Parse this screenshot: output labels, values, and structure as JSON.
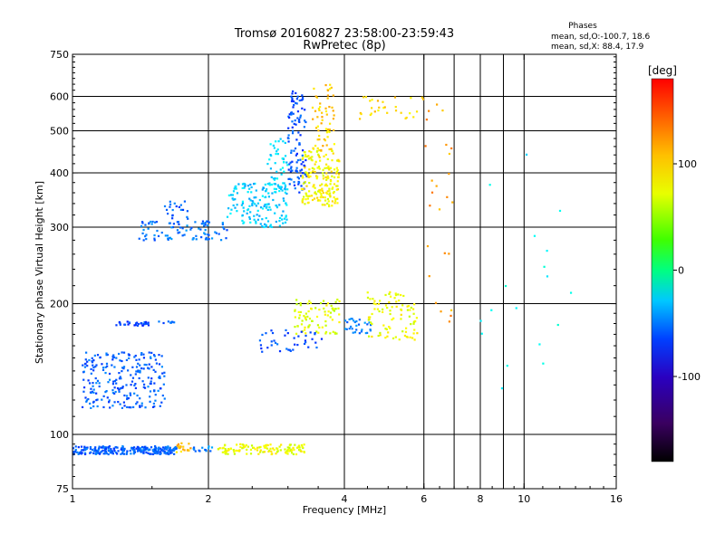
{
  "chart_data": {
    "type": "scatter",
    "title": "Tromsø 20160827 23:58:00-23:59:43",
    "subtitle": "RwPretec (8p)",
    "xlabel": "Frequency [MHz]",
    "ylabel": "Stationary phase Virtual Height [km]",
    "x_scale": "log2",
    "y_scale": "log",
    "xlim": [
      1,
      16
    ],
    "ylim": [
      75,
      750
    ],
    "x_ticks": [
      1,
      2,
      4,
      6,
      8,
      10,
      16
    ],
    "y_ticks": [
      75,
      100,
      200,
      300,
      400,
      500,
      600,
      750
    ],
    "x_grid": [
      2,
      4,
      6,
      7,
      8,
      9,
      10
    ],
    "y_grid": [
      100,
      200,
      300,
      400,
      500,
      600
    ],
    "stats": {
      "title": "Phases",
      "line_o": "mean, sd,O:-100.7, 18.6",
      "line_x": "mean, sd,X:  88.4, 17.9"
    },
    "colorbar": {
      "label": "[deg]",
      "range": [
        -180,
        180
      ],
      "ticks": [
        100,
        0,
        -100
      ],
      "colormap": "rainbow"
    },
    "series": [
      {
        "x_range": [
          1.0,
          1.7
        ],
        "y_range": [
          90,
          94
        ],
        "phase": -110,
        "n": 260
      },
      {
        "x_range": [
          1.7,
          1.85
        ],
        "y_range": [
          91,
          96
        ],
        "phase": 120,
        "n": 18
      },
      {
        "x_range": [
          1.85,
          2.05
        ],
        "y_range": [
          91,
          94
        ],
        "phase": -100,
        "n": 14
      },
      {
        "x_range": [
          2.1,
          3.3
        ],
        "y_range": [
          90,
          95
        ],
        "phase": 95,
        "n": 120
      },
      {
        "x_range": [
          1.05,
          1.6
        ],
        "y_range": [
          115,
          155
        ],
        "phase": -110,
        "n": 240
      },
      {
        "x_range": [
          1.25,
          1.5
        ],
        "y_range": [
          178,
          182
        ],
        "phase": -120,
        "n": 30
      },
      {
        "x_range": [
          1.55,
          1.7
        ],
        "y_range": [
          180,
          182
        ],
        "phase": -110,
        "n": 8
      },
      {
        "x_range": [
          1.4,
          2.2
        ],
        "y_range": [
          280,
          310
        ],
        "phase": -105,
        "n": 90
      },
      {
        "x_range": [
          1.6,
          1.8
        ],
        "y_range": [
          310,
          345
        ],
        "phase": -110,
        "n": 20
      },
      {
        "x_range": [
          2.2,
          3.0
        ],
        "y_range": [
          300,
          380
        ],
        "phase": -75,
        "n": 160
      },
      {
        "x_range": [
          2.7,
          3.0
        ],
        "y_range": [
          370,
          480
        ],
        "phase": -70,
        "n": 40
      },
      {
        "x_range": [
          3.0,
          3.3
        ],
        "y_range": [
          360,
          560
        ],
        "phase": -115,
        "n": 90
      },
      {
        "x_range": [
          3.05,
          3.25
        ],
        "y_range": [
          560,
          620
        ],
        "phase": -120,
        "n": 20
      },
      {
        "x_range": [
          3.2,
          3.9
        ],
        "y_range": [
          335,
          450
        ],
        "phase": 100,
        "n": 180
      },
      {
        "x_range": [
          3.4,
          3.8
        ],
        "y_range": [
          450,
          640
        ],
        "phase": 115,
        "n": 60
      },
      {
        "x_range": [
          3.1,
          3.9
        ],
        "y_range": [
          170,
          205
        ],
        "phase": 90,
        "n": 80
      },
      {
        "x_range": [
          2.6,
          3.6
        ],
        "y_range": [
          155,
          175
        ],
        "phase": -115,
        "n": 40
      },
      {
        "x_range": [
          4.0,
          4.6
        ],
        "y_range": [
          170,
          185
        ],
        "phase": -100,
        "n": 30
      },
      {
        "x_range": [
          4.5,
          5.8
        ],
        "y_range": [
          165,
          215
        ],
        "phase": 95,
        "n": 90
      },
      {
        "x_range": [
          4.3,
          6.0
        ],
        "y_range": [
          530,
          600
        ],
        "phase": 110,
        "n": 30
      },
      {
        "x_range": [
          6.0,
          7.0
        ],
        "y_range": [
          180,
          600
        ],
        "phase": 130,
        "n": 25
      },
      {
        "x_range": [
          8.0,
          13.0
        ],
        "y_range": [
          120,
          550
        ],
        "phase": -60,
        "n": 18
      }
    ]
  }
}
